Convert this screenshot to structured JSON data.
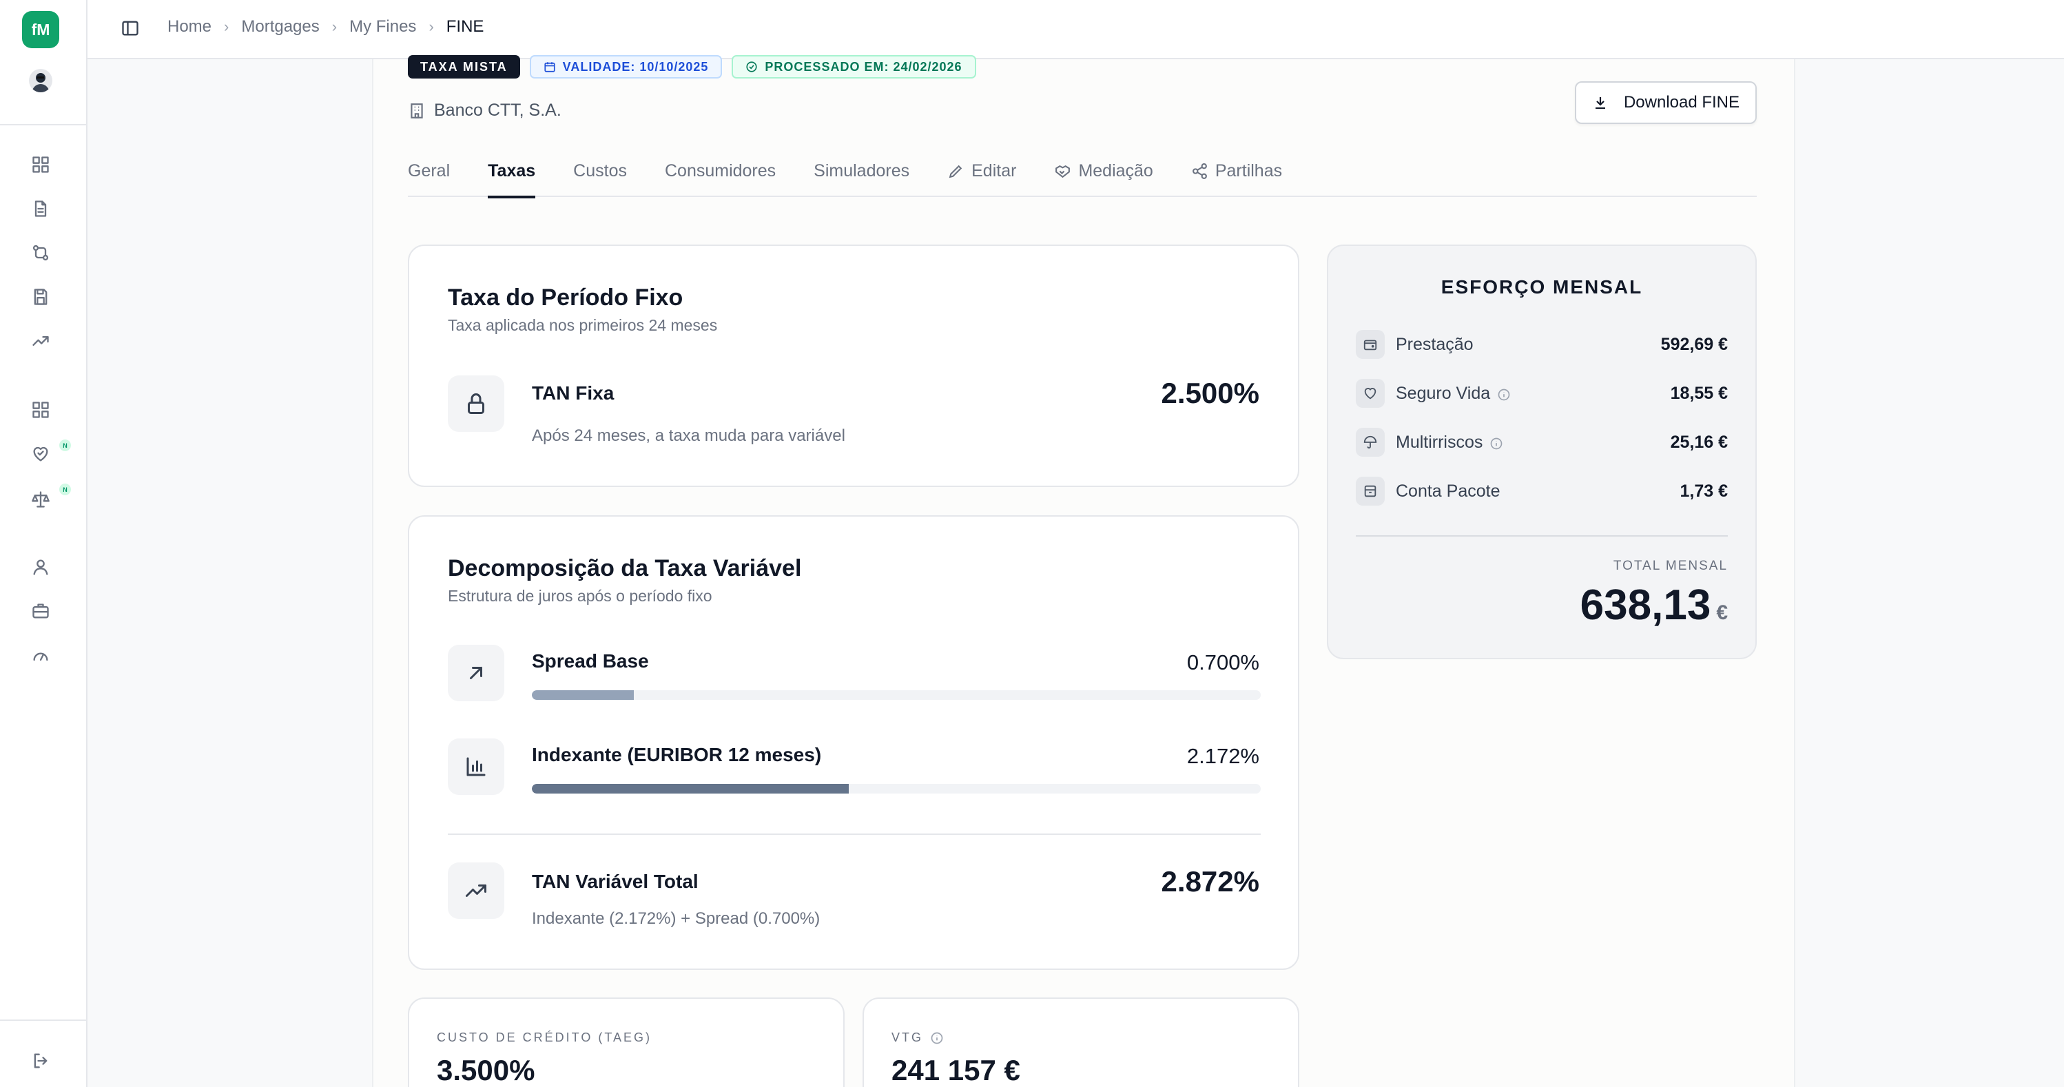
{
  "app": {
    "logo": "fM"
  },
  "breadcrumb": [
    "Home",
    "Mortgages",
    "My Fines",
    "FINE"
  ],
  "header": {
    "badges": {
      "rate_type": "TAXA MISTA",
      "validity": "VALIDADE: 10/10/2025",
      "processed": "PROCESSADO EM: 24/02/2026"
    },
    "bank": "Banco CTT, S.A.",
    "download_label": "Download FINE"
  },
  "tabs": [
    {
      "label": "Geral",
      "icon": ""
    },
    {
      "label": "Taxas",
      "icon": "",
      "active": true
    },
    {
      "label": "Custos",
      "icon": ""
    },
    {
      "label": "Consumidores",
      "icon": ""
    },
    {
      "label": "Simuladores",
      "icon": ""
    },
    {
      "label": "Editar",
      "icon": "pencil-icon"
    },
    {
      "label": "Mediação",
      "icon": "handshake-icon"
    },
    {
      "label": "Partilhas",
      "icon": "share-icon"
    }
  ],
  "fixed_rate": {
    "title": "Taxa do Período Fixo",
    "subtitle": "Taxa aplicada nos primeiros 24 meses",
    "label": "TAN Fixa",
    "value": "2.500%",
    "note": "Após 24 meses, a taxa muda para variável",
    "icon": "lock-icon"
  },
  "variable_rate": {
    "title": "Decomposição da Taxa Variável",
    "subtitle": "Estrutura de juros após o período fixo",
    "components": [
      {
        "label": "Spread Base",
        "value": "0.700%",
        "fraction": 0.14,
        "color": "#94a3b8",
        "icon": "arrow-up-right-icon"
      },
      {
        "label": "Indexante (EURIBOR 12 meses)",
        "value": "2.172%",
        "fraction": 0.435,
        "color": "#64748b",
        "icon": "bar-chart-icon"
      }
    ],
    "total": {
      "label": "TAN Variável Total",
      "value": "2.872%",
      "note": "Indexante (2.172%) + Spread (0.700%)",
      "icon": "trending-up-icon"
    }
  },
  "monthly_effort": {
    "title": "ESFORÇO MENSAL",
    "items": [
      {
        "label": "Prestação",
        "value": "592,69 €",
        "icon": "wallet-icon",
        "info": false
      },
      {
        "label": "Seguro Vida",
        "value": "18,55 €",
        "icon": "heart-icon",
        "info": true
      },
      {
        "label": "Multirriscos",
        "value": "25,16 €",
        "icon": "umbrella-icon",
        "info": true
      },
      {
        "label": "Conta Pacote",
        "value": "1,73 €",
        "icon": "package-icon",
        "info": false
      }
    ],
    "total_label": "TOTAL MENSAL",
    "total_value": "638,13",
    "currency": "€"
  },
  "kpis": [
    {
      "label": "CUSTO DE CRÉDITO (TAEG)",
      "value": "3.500%",
      "info": false
    },
    {
      "label": "VTG",
      "value": "241 157 €",
      "info": true
    }
  ],
  "colors": {
    "brand": "#10a36a",
    "accent": "#111827",
    "new_badge": "#059669"
  },
  "rail_badges": [
    "N",
    "N"
  ]
}
